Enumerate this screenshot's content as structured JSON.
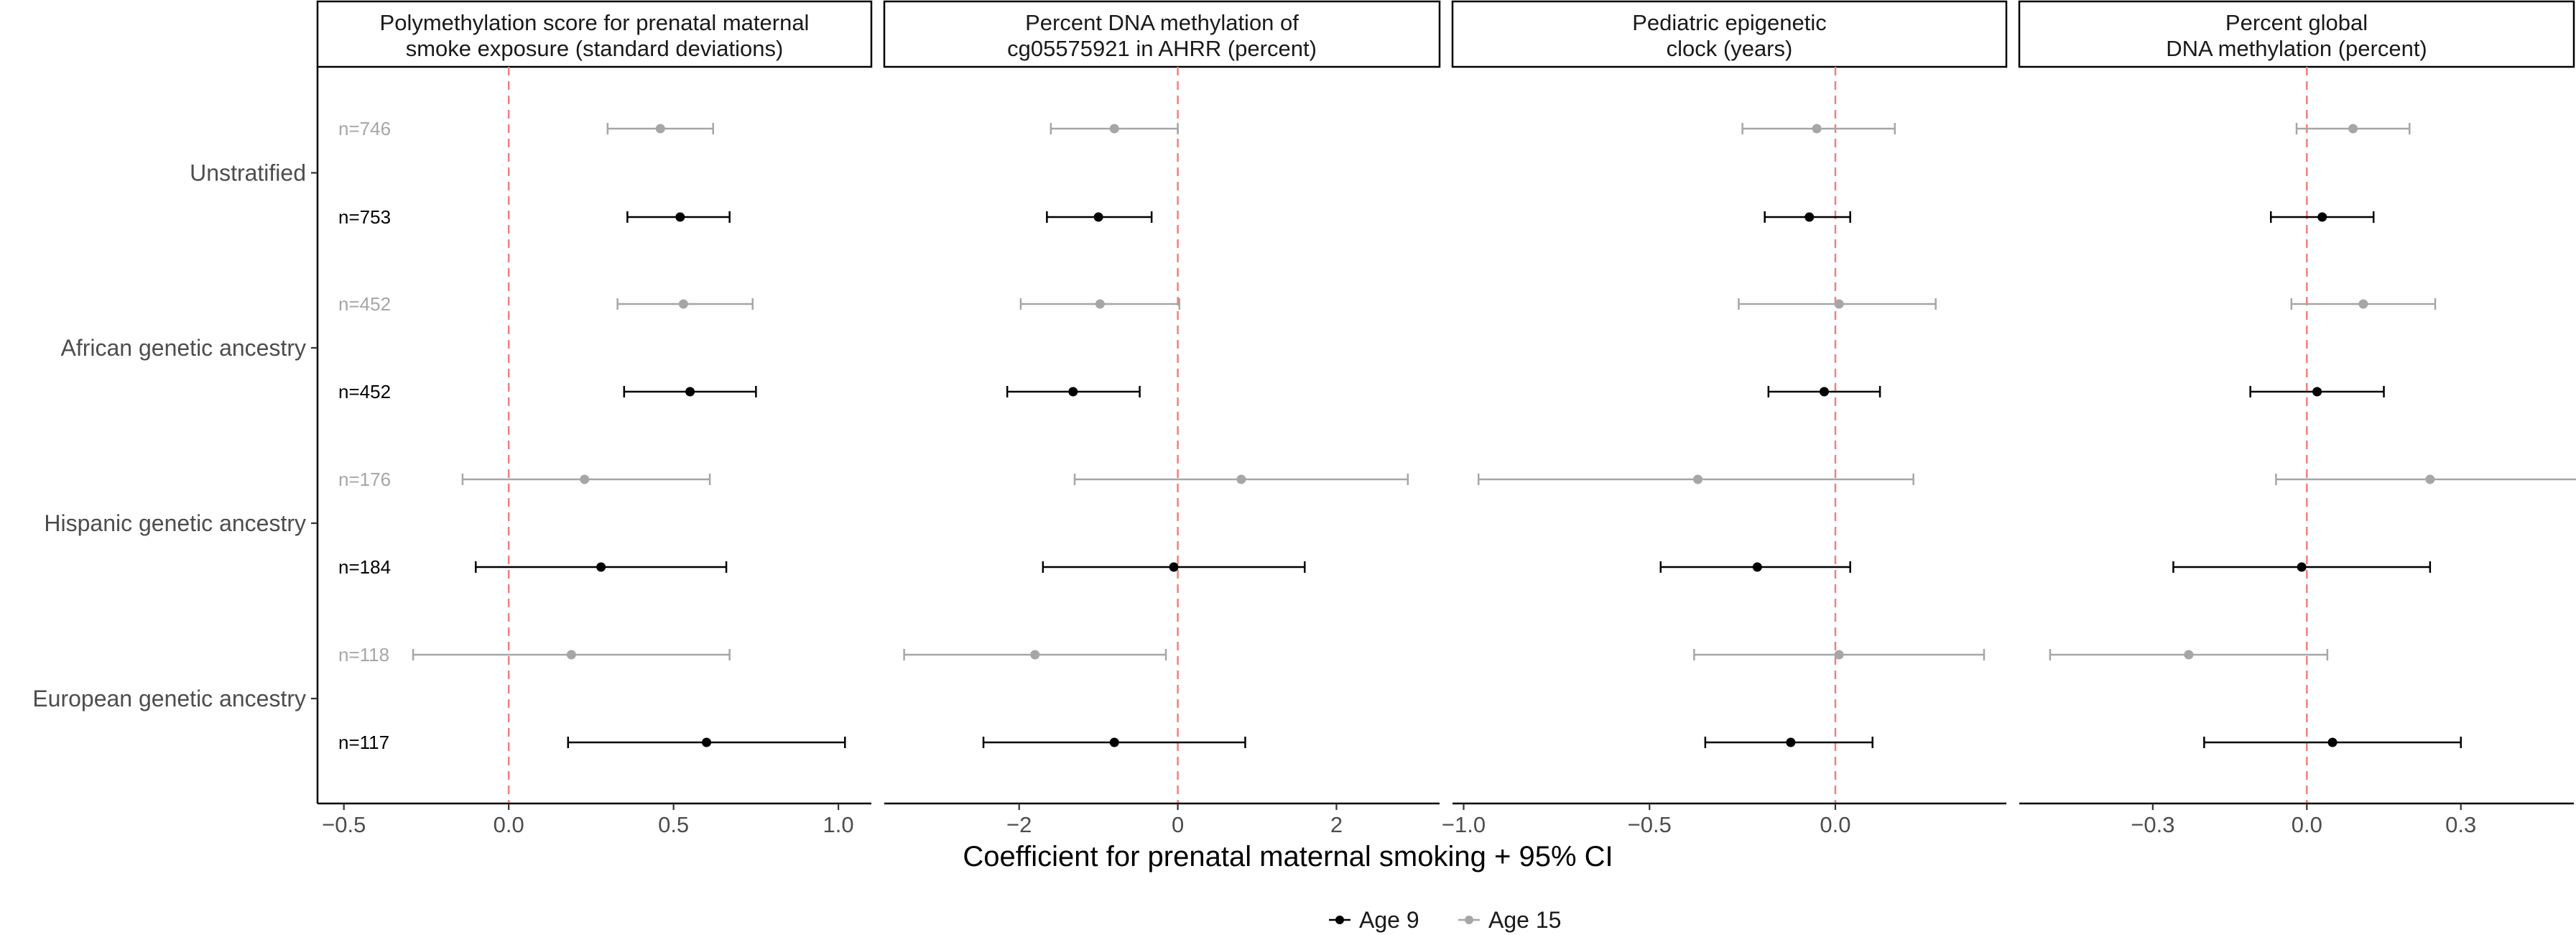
{
  "chart_data": {
    "type": "forest",
    "xlabel": "Coefficient for prenatal maternal smoking + 95% CI",
    "row_groups": [
      "Unstratified",
      "African genetic ancestry",
      "Hispanic genetic ancestry",
      "European genetic ancestry"
    ],
    "sample_sizes": {
      "Age 15": [
        "n=746",
        "n=452",
        "n=176",
        "n=118"
      ],
      "Age 9": [
        "n=753",
        "n=452",
        "n=184",
        "n=117"
      ]
    },
    "legend": [
      {
        "name": "Age 9",
        "color": "#000000"
      },
      {
        "name": "Age 15",
        "color": "#a6a6a6"
      }
    ],
    "reference_line": {
      "x": 0,
      "color": "#f08080",
      "style": "dashed"
    },
    "panels": [
      {
        "title_lines": [
          "Polymethylation score for prenatal maternal",
          "smoke exposure (standard deviations)"
        ],
        "xlim": [
          -0.58,
          1.1
        ],
        "ticks": [
          -0.5,
          0.0,
          0.5,
          1.0
        ],
        "tick_labels": [
          "−0.5",
          "0.0",
          "0.5",
          "1.0"
        ],
        "series": {
          "Age 15": [
            {
              "est": 0.46,
              "lo": 0.3,
              "hi": 0.62
            },
            {
              "est": 0.53,
              "lo": 0.33,
              "hi": 0.74
            },
            {
              "est": 0.23,
              "lo": -0.14,
              "hi": 0.61
            },
            {
              "est": 0.19,
              "lo": -0.29,
              "hi": 0.67
            }
          ],
          "Age 9": [
            {
              "est": 0.52,
              "lo": 0.36,
              "hi": 0.67
            },
            {
              "est": 0.55,
              "lo": 0.35,
              "hi": 0.75
            },
            {
              "est": 0.28,
              "lo": -0.1,
              "hi": 0.66
            },
            {
              "est": 0.6,
              "lo": 0.18,
              "hi": 1.02
            }
          ]
        }
      },
      {
        "title_lines": [
          "Percent DNA methylation of",
          "cg05575921 in AHRR (percent)"
        ],
        "xlim": [
          -3.7,
          3.3
        ],
        "ticks": [
          -2,
          0,
          2
        ],
        "tick_labels": [
          "−2",
          "0",
          "2"
        ],
        "series": {
          "Age 15": [
            {
              "est": -0.8,
              "lo": -1.6,
              "hi": 0.0
            },
            {
              "est": -0.98,
              "lo": -1.98,
              "hi": 0.02
            },
            {
              "est": 0.8,
              "lo": -1.3,
              "hi": 2.9
            },
            {
              "est": -1.8,
              "lo": -3.45,
              "hi": -0.15
            }
          ],
          "Age 9": [
            {
              "est": -1.0,
              "lo": -1.65,
              "hi": -0.33
            },
            {
              "est": -1.32,
              "lo": -2.15,
              "hi": -0.48
            },
            {
              "est": -0.05,
              "lo": -1.7,
              "hi": 1.6
            },
            {
              "est": -0.8,
              "lo": -2.45,
              "hi": 0.85
            }
          ]
        }
      },
      {
        "title_lines": [
          "Pediatric epigenetic",
          "clock (years)"
        ],
        "xlim": [
          -1.03,
          0.46
        ],
        "ticks": [
          -1.0,
          -0.5,
          0.0
        ],
        "tick_labels": [
          "−1.0",
          "−0.5",
          "0.0"
        ],
        "series": {
          "Age 15": [
            {
              "est": -0.05,
              "lo": -0.25,
              "hi": 0.16
            },
            {
              "est": 0.01,
              "lo": -0.26,
              "hi": 0.27
            },
            {
              "est": -0.37,
              "lo": -0.96,
              "hi": 0.21
            },
            {
              "est": 0.01,
              "lo": -0.38,
              "hi": 0.4
            }
          ],
          "Age 9": [
            {
              "est": -0.07,
              "lo": -0.19,
              "hi": 0.04
            },
            {
              "est": -0.03,
              "lo": -0.18,
              "hi": 0.12
            },
            {
              "est": -0.21,
              "lo": -0.47,
              "hi": 0.04
            },
            {
              "est": -0.12,
              "lo": -0.35,
              "hi": 0.1
            }
          ]
        }
      },
      {
        "title_lines": [
          "Percent global",
          "DNA methylation  (percent)"
        ],
        "xlim": [
          -0.56,
          0.52
        ],
        "ticks": [
          -0.3,
          0.0,
          0.3
        ],
        "tick_labels": [
          "−0.3",
          "0.0",
          "0.3"
        ],
        "series": {
          "Age 15": [
            {
              "est": 0.09,
              "lo": -0.02,
              "hi": 0.2
            },
            {
              "est": 0.11,
              "lo": -0.03,
              "hi": 0.25
            },
            {
              "est": 0.24,
              "lo": -0.06,
              "hi": 0.54
            },
            {
              "est": -0.23,
              "lo": -0.5,
              "hi": 0.04
            }
          ],
          "Age 9": [
            {
              "est": 0.03,
              "lo": -0.07,
              "hi": 0.13
            },
            {
              "est": 0.02,
              "lo": -0.11,
              "hi": 0.15
            },
            {
              "est": -0.01,
              "lo": -0.26,
              "hi": 0.24
            },
            {
              "est": 0.05,
              "lo": -0.2,
              "hi": 0.3
            }
          ]
        }
      }
    ]
  }
}
